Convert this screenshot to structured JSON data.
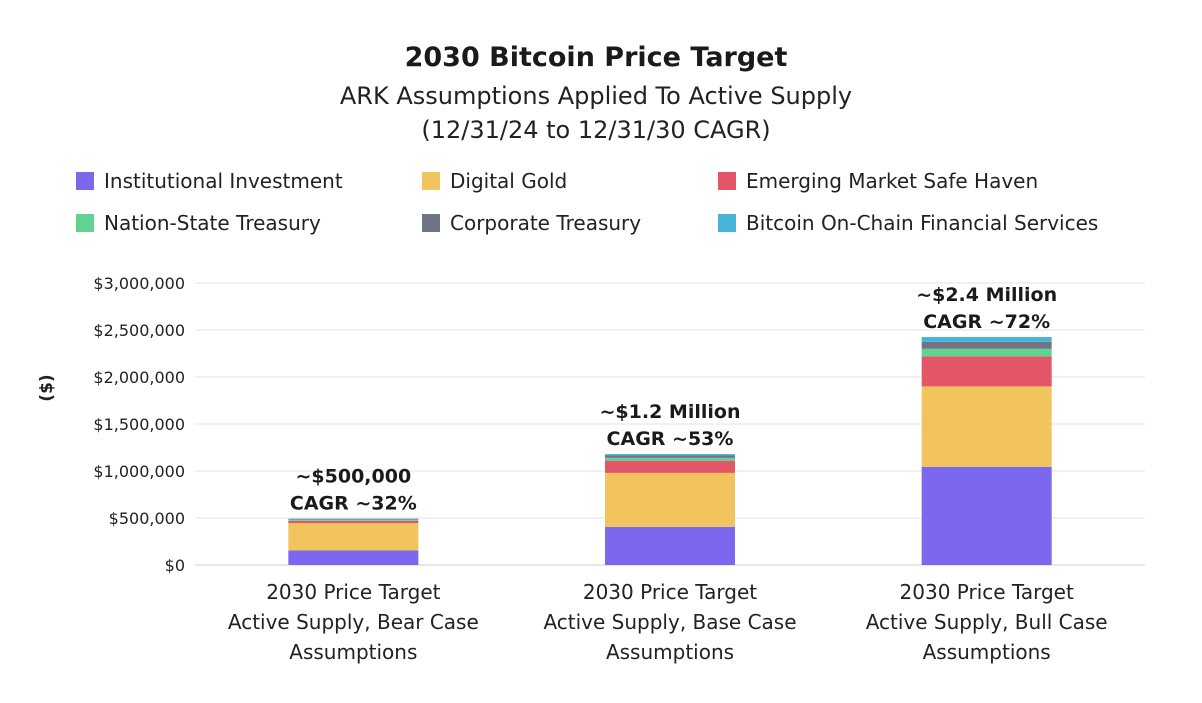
{
  "chart_data": {
    "type": "bar",
    "stacked": true,
    "title": "2030 Bitcoin Price Target",
    "subtitle_lines": [
      "ARK Assumptions Applied To Active Supply",
      "(12/31/24 to 12/31/30 CAGR)"
    ],
    "ylabel": "($)",
    "ylim": [
      0,
      3000000
    ],
    "yticks": [
      0,
      500000,
      1000000,
      1500000,
      2000000,
      2500000,
      3000000
    ],
    "ytick_labels": [
      "$0",
      "$500,000",
      "$1,000,000",
      "$1,500,000",
      "$2,000,000",
      "$2,500,000",
      "$3,000,000"
    ],
    "grid": true,
    "legend_position": "top",
    "categories": [
      [
        "2030 Price Target",
        "Active Supply, Bear Case",
        "Assumptions"
      ],
      [
        "2030 Price Target",
        "Active Supply, Base Case",
        "Assumptions"
      ],
      [
        "2030 Price Target",
        "Active Supply, Bull Case",
        "Assumptions"
      ]
    ],
    "annotations": [
      [
        "~$500,000",
        "CAGR ~32%"
      ],
      [
        "~$1.2 Million",
        "CAGR ~53%"
      ],
      [
        "~$2.4 Million",
        "CAGR ~72%"
      ]
    ],
    "series": [
      {
        "name": "Institutional Investment",
        "color": "#7b68ee",
        "values": [
          155000,
          405000,
          1045000
        ]
      },
      {
        "name": "Digital Gold",
        "color": "#f2c45d",
        "values": [
          290000,
          575000,
          855000
        ]
      },
      {
        "name": "Emerging Market Safe Haven",
        "color": "#e25668",
        "values": [
          25000,
          130000,
          320000
        ]
      },
      {
        "name": "Nation-State Treasury",
        "color": "#5fd38f",
        "values": [
          10000,
          30000,
          80000
        ]
      },
      {
        "name": "Corporate Treasury",
        "color": "#6f7585",
        "values": [
          8000,
          25000,
          75000
        ]
      },
      {
        "name": "Bitcoin On-Chain Financial Services",
        "color": "#45b4d8",
        "values": [
          5000,
          15000,
          50000
        ]
      }
    ]
  }
}
